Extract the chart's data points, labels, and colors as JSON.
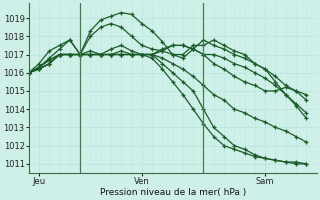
{
  "xlabel": "Pression niveau de la mer( hPa )",
  "bg_color": "#cff0e8",
  "grid_major_color": "#b8e8e0",
  "grid_minor_color": "#d8f5f0",
  "line_color": "#1a5c28",
  "vline_color": "#4a7a50",
  "ylim": [
    1010.5,
    1019.8
  ],
  "yticks": [
    1011,
    1012,
    1013,
    1014,
    1015,
    1016,
    1017,
    1018,
    1019
  ],
  "xlim": [
    0,
    56
  ],
  "day_ticks": [
    2,
    22,
    46
  ],
  "day_labels": [
    "Jeu",
    "Ven",
    "Sam"
  ],
  "vlines": [
    10,
    34
  ],
  "lines": [
    {
      "x": [
        0,
        2,
        4,
        6,
        8,
        10,
        12,
        14,
        16,
        18,
        20,
        22,
        24,
        26,
        28,
        30,
        32,
        34,
        36,
        38,
        40,
        42,
        44,
        46,
        48,
        50,
        52,
        54
      ],
      "y": [
        1016.0,
        1016.3,
        1016.8,
        1017.3,
        1017.8,
        1017.0,
        1018.3,
        1018.9,
        1019.1,
        1019.3,
        1019.2,
        1018.7,
        1018.3,
        1017.7,
        1017.0,
        1016.8,
        1017.3,
        1017.8,
        1017.5,
        1017.3,
        1017.0,
        1016.8,
        1016.5,
        1016.2,
        1015.5,
        1014.8,
        1014.2,
        1013.5
      ]
    },
    {
      "x": [
        0,
        2,
        4,
        6,
        8,
        10,
        12,
        14,
        16,
        18,
        20,
        22,
        24,
        26,
        28,
        30,
        32,
        34,
        36,
        38,
        40,
        42,
        44,
        46,
        48,
        50,
        52,
        54
      ],
      "y": [
        1016.0,
        1016.5,
        1017.2,
        1017.5,
        1017.8,
        1017.0,
        1018.0,
        1018.5,
        1018.7,
        1018.5,
        1018.0,
        1017.5,
        1017.3,
        1017.2,
        1017.0,
        1017.0,
        1017.5,
        1017.5,
        1017.8,
        1017.5,
        1017.2,
        1017.0,
        1016.5,
        1016.2,
        1015.8,
        1015.3,
        1015.0,
        1014.5
      ]
    },
    {
      "x": [
        0,
        2,
        4,
        6,
        8,
        10,
        12,
        14,
        16,
        18,
        20,
        22,
        24,
        26,
        28,
        30,
        32,
        34,
        36,
        38,
        40,
        42,
        44,
        46,
        48,
        50,
        52,
        54
      ],
      "y": [
        1016.0,
        1016.3,
        1016.7,
        1017.0,
        1017.0,
        1017.0,
        1017.0,
        1017.0,
        1017.0,
        1017.2,
        1017.0,
        1017.0,
        1017.0,
        1017.3,
        1017.5,
        1017.5,
        1017.3,
        1017.0,
        1017.0,
        1016.8,
        1016.5,
        1016.3,
        1016.0,
        1015.7,
        1015.3,
        1014.8,
        1014.3,
        1013.8
      ]
    },
    {
      "x": [
        0,
        2,
        4,
        6,
        8,
        10,
        12,
        14,
        16,
        18,
        20,
        22,
        24,
        26,
        28,
        30,
        32,
        34,
        36,
        38,
        40,
        42,
        44,
        46,
        48,
        50,
        52,
        54
      ],
      "y": [
        1016.0,
        1016.2,
        1016.5,
        1017.0,
        1017.0,
        1017.0,
        1017.0,
        1017.0,
        1017.0,
        1017.0,
        1017.0,
        1017.0,
        1017.0,
        1016.5,
        1016.0,
        1015.5,
        1015.0,
        1014.0,
        1013.0,
        1012.5,
        1012.0,
        1011.8,
        1011.5,
        1011.3,
        1011.2,
        1011.1,
        1011.0,
        1011.0
      ]
    },
    {
      "x": [
        0,
        2,
        4,
        6,
        8,
        10,
        12,
        14,
        16,
        18,
        20,
        22,
        24,
        26,
        28,
        30,
        32,
        34,
        36,
        38,
        40,
        42,
        44,
        46,
        48,
        50,
        52,
        54
      ],
      "y": [
        1016.0,
        1016.2,
        1016.5,
        1017.0,
        1017.0,
        1017.0,
        1017.0,
        1017.0,
        1017.0,
        1017.0,
        1017.0,
        1017.0,
        1016.8,
        1016.2,
        1015.5,
        1014.8,
        1014.0,
        1013.2,
        1012.5,
        1012.0,
        1011.8,
        1011.6,
        1011.4,
        1011.3,
        1011.2,
        1011.1,
        1011.1,
        1011.0
      ]
    },
    {
      "x": [
        0,
        2,
        4,
        6,
        8,
        10,
        12,
        14,
        16,
        18,
        20,
        22,
        24,
        26,
        28,
        30,
        32,
        34,
        36,
        38,
        40,
        42,
        44,
        46,
        48,
        50,
        52,
        54
      ],
      "y": [
        1016.0,
        1016.2,
        1016.5,
        1017.0,
        1017.0,
        1017.0,
        1017.0,
        1017.0,
        1017.0,
        1017.0,
        1017.0,
        1017.0,
        1017.0,
        1016.8,
        1016.5,
        1016.2,
        1015.8,
        1015.3,
        1014.8,
        1014.5,
        1014.0,
        1013.8,
        1013.5,
        1013.3,
        1013.0,
        1012.8,
        1012.5,
        1012.2
      ]
    },
    {
      "x": [
        0,
        2,
        4,
        6,
        8,
        10,
        12,
        14,
        16,
        18,
        20,
        22,
        24,
        26,
        28,
        30,
        32,
        34,
        36,
        38,
        40,
        42,
        44,
        46,
        48,
        50,
        52,
        54
      ],
      "y": [
        1016.0,
        1016.3,
        1016.7,
        1017.0,
        1017.0,
        1017.0,
        1017.2,
        1017.0,
        1017.3,
        1017.5,
        1017.2,
        1017.0,
        1017.0,
        1017.2,
        1017.5,
        1017.5,
        1017.3,
        1017.0,
        1016.5,
        1016.2,
        1015.8,
        1015.5,
        1015.3,
        1015.0,
        1015.0,
        1015.2,
        1015.0,
        1014.8
      ]
    }
  ]
}
